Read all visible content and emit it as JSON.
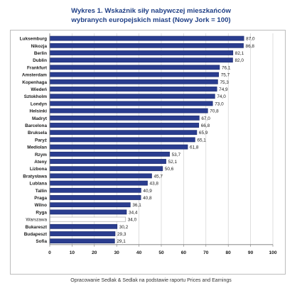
{
  "header": {
    "title_line1": "Wykres 1. Wskaźnik siły nabywczej mieszkańców",
    "title_line2": "wybranych europejskich miast (Nowy Jork = 100)"
  },
  "footer": {
    "source": "Opracowanie Sedlak & Sedlak na podstawie raportu Prices and Earnings"
  },
  "colors": {
    "bar": "#2a3d8f",
    "bar_highlight": "#ffffff",
    "title": "#1f3f86",
    "grid": "#c8c8c8"
  },
  "chart_data": {
    "type": "bar",
    "orientation": "horizontal",
    "title": "Wykres 1. Wskaźnik siły nabywczej mieszkańców wybranych europejskich miast (Nowy Jork = 100)",
    "categories": [
      "Luksemburg",
      "Nikozja",
      "Berlin",
      "Dublin",
      "Frankfurt",
      "Amsterdam",
      "Kopenhaga",
      "Wiedeń",
      "Sztokholm",
      "Londyn",
      "Helsinki",
      "Madryt",
      "Barcelona",
      "Bruksela",
      "Paryż",
      "Mediolan",
      "Rzym",
      "Ateny",
      "Lizbona",
      "Bratysława",
      "Lublana",
      "Tallin",
      "Praga",
      "Wilno",
      "Ryga",
      "Warszawa",
      "Bukareszt",
      "Budapeszt",
      "Sofia"
    ],
    "values": [
      87.0,
      86.8,
      82.1,
      82.0,
      76.1,
      75.7,
      75.3,
      74.9,
      74.0,
      73.0,
      70.8,
      67.0,
      66.8,
      65.9,
      65.1,
      61.8,
      53.7,
      52.1,
      50.6,
      45.7,
      43.8,
      40.9,
      40.8,
      36.1,
      34.4,
      34.0,
      30.2,
      29.3,
      29.1
    ],
    "value_labels": [
      "87,0",
      "86,8",
      "82,1",
      "82,0",
      "76,1",
      "75,7",
      "75,3",
      "74,9",
      "74,0",
      "73,0",
      "70,8",
      "67,0",
      "66,8",
      "65,9",
      "65,1",
      "61,8",
      "53,7",
      "52,1",
      "50,6",
      "45,7",
      "43,8",
      "40,9",
      "40,8",
      "36,1",
      "34,4",
      "34,0",
      "30,2",
      "29,3",
      "29,1"
    ],
    "highlight": "Warszawa",
    "xlim": [
      0,
      100
    ],
    "xticks": [
      0,
      10,
      20,
      30,
      40,
      50,
      60,
      70,
      80,
      90,
      100
    ],
    "grid": true,
    "legend": "none"
  }
}
